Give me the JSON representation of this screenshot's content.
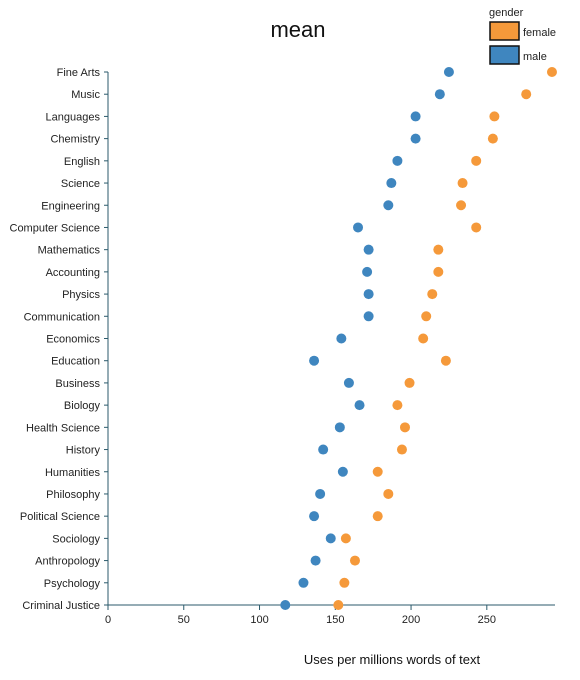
{
  "chart_data": {
    "type": "scatter",
    "title": "mean",
    "xlabel": "Uses per millions words of text",
    "ylabel": "",
    "xlim": [
      0,
      295
    ],
    "x_ticks": [
      0,
      50,
      100,
      150,
      200,
      250
    ],
    "categories": [
      "Fine Arts",
      "Music",
      "Languages",
      "Chemistry",
      "English",
      "Science",
      "Engineering",
      "Computer Science",
      "Mathematics",
      "Accounting",
      "Physics",
      "Communication",
      "Economics",
      "Education",
      "Business",
      "Biology",
      "Health Science",
      "History",
      "Humanities",
      "Philosophy",
      "Political Science",
      "Sociology",
      "Anthropology",
      "Psychology",
      "Criminal Justice"
    ],
    "series": [
      {
        "name": "female",
        "color": "#f5993a",
        "values": [
          293,
          276,
          255,
          254,
          243,
          234,
          233,
          243,
          218,
          218,
          214,
          210,
          208,
          223,
          199,
          191,
          196,
          194,
          178,
          185,
          178,
          157,
          163,
          156,
          152
        ]
      },
      {
        "name": "male",
        "color": "#3f86bf",
        "values": [
          225,
          219,
          203,
          203,
          191,
          187,
          185,
          165,
          172,
          171,
          172,
          172,
          154,
          136,
          159,
          166,
          153,
          142,
          155,
          140,
          136,
          147,
          137,
          129,
          117
        ]
      }
    ],
    "legend": {
      "title": "gender",
      "position": "top-right",
      "entries": [
        "female",
        "male"
      ]
    },
    "grid": false
  }
}
